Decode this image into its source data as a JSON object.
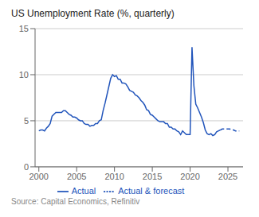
{
  "chart_data": {
    "type": "line",
    "title": "US Unemployment Rate (%, quarterly)",
    "annotations": [
      "Source: Capital Economics, Refinitiv"
    ],
    "xlim": [
      1999.5,
      2027.0
    ],
    "xticks": [
      2000,
      2005,
      2010,
      2015,
      2020,
      2025
    ],
    "ylim": [
      0,
      15
    ],
    "yticks": [
      0,
      5,
      10,
      15
    ],
    "grid": "y",
    "legend": "bottom",
    "series": [
      {
        "name": "Actual",
        "color": "#2255bb",
        "line_style": "solid",
        "x": [
          2000.0,
          2000.25,
          2000.5,
          2000.75,
          2001.0,
          2001.25,
          2001.5,
          2001.75,
          2002.0,
          2002.25,
          2002.5,
          2002.75,
          2003.0,
          2003.25,
          2003.5,
          2003.75,
          2004.0,
          2004.25,
          2004.5,
          2004.75,
          2005.0,
          2005.25,
          2005.5,
          2005.75,
          2006.0,
          2006.25,
          2006.5,
          2006.75,
          2007.0,
          2007.25,
          2007.5,
          2007.75,
          2008.0,
          2008.25,
          2008.5,
          2008.75,
          2009.0,
          2009.25,
          2009.5,
          2009.75,
          2010.0,
          2010.25,
          2010.5,
          2010.75,
          2011.0,
          2011.25,
          2011.5,
          2011.75,
          2012.0,
          2012.25,
          2012.5,
          2012.75,
          2013.0,
          2013.25,
          2013.5,
          2013.75,
          2014.0,
          2014.25,
          2014.5,
          2014.75,
          2015.0,
          2015.25,
          2015.5,
          2015.75,
          2016.0,
          2016.25,
          2016.5,
          2016.75,
          2017.0,
          2017.25,
          2017.5,
          2017.75,
          2018.0,
          2018.25,
          2018.5,
          2018.75,
          2019.0,
          2019.25,
          2019.5,
          2019.75,
          2020.0,
          2020.25,
          2020.5,
          2020.75,
          2021.0,
          2021.25,
          2021.5,
          2021.75,
          2022.0,
          2022.25,
          2022.5,
          2022.75,
          2023.0,
          2023.25,
          2023.5,
          2023.75,
          2024.0
        ],
        "values": [
          3.9,
          4.0,
          4.0,
          3.9,
          4.2,
          4.4,
          4.7,
          5.5,
          5.7,
          5.9,
          5.9,
          5.9,
          5.9,
          6.1,
          6.1,
          5.9,
          5.7,
          5.6,
          5.4,
          5.4,
          5.3,
          5.1,
          5.0,
          5.0,
          4.7,
          4.6,
          4.6,
          4.4,
          4.5,
          4.5,
          4.7,
          4.7,
          5.0,
          5.1,
          6.1,
          6.9,
          7.8,
          8.7,
          9.6,
          10.0,
          9.8,
          9.9,
          9.5,
          9.5,
          9.1,
          9.1,
          9.0,
          8.7,
          8.3,
          8.2,
          8.1,
          7.8,
          7.7,
          7.5,
          7.2,
          7.0,
          6.7,
          6.2,
          6.1,
          5.7,
          5.6,
          5.4,
          5.2,
          5.0,
          4.9,
          4.9,
          4.9,
          4.7,
          4.7,
          4.3,
          4.3,
          4.1,
          4.1,
          3.9,
          3.8,
          3.5,
          3.9,
          3.7,
          3.5,
          3.5,
          3.5,
          13.0,
          8.8,
          6.8,
          6.4,
          5.9,
          5.4,
          4.8,
          4.0,
          3.6,
          3.5,
          3.6,
          3.4,
          3.5,
          3.8,
          3.9,
          4.0
        ]
      },
      {
        "name": "Actual & forecast",
        "color": "#2255bb",
        "line_style": "dashed",
        "x": [
          2024.0,
          2024.25,
          2024.5,
          2024.75,
          2025.0,
          2025.25,
          2025.5,
          2025.75,
          2026.0,
          2026.25,
          2026.5
        ],
        "values": [
          4.0,
          4.1,
          4.1,
          4.1,
          4.1,
          4.1,
          4.0,
          4.0,
          3.9,
          3.9,
          3.9
        ]
      }
    ]
  }
}
